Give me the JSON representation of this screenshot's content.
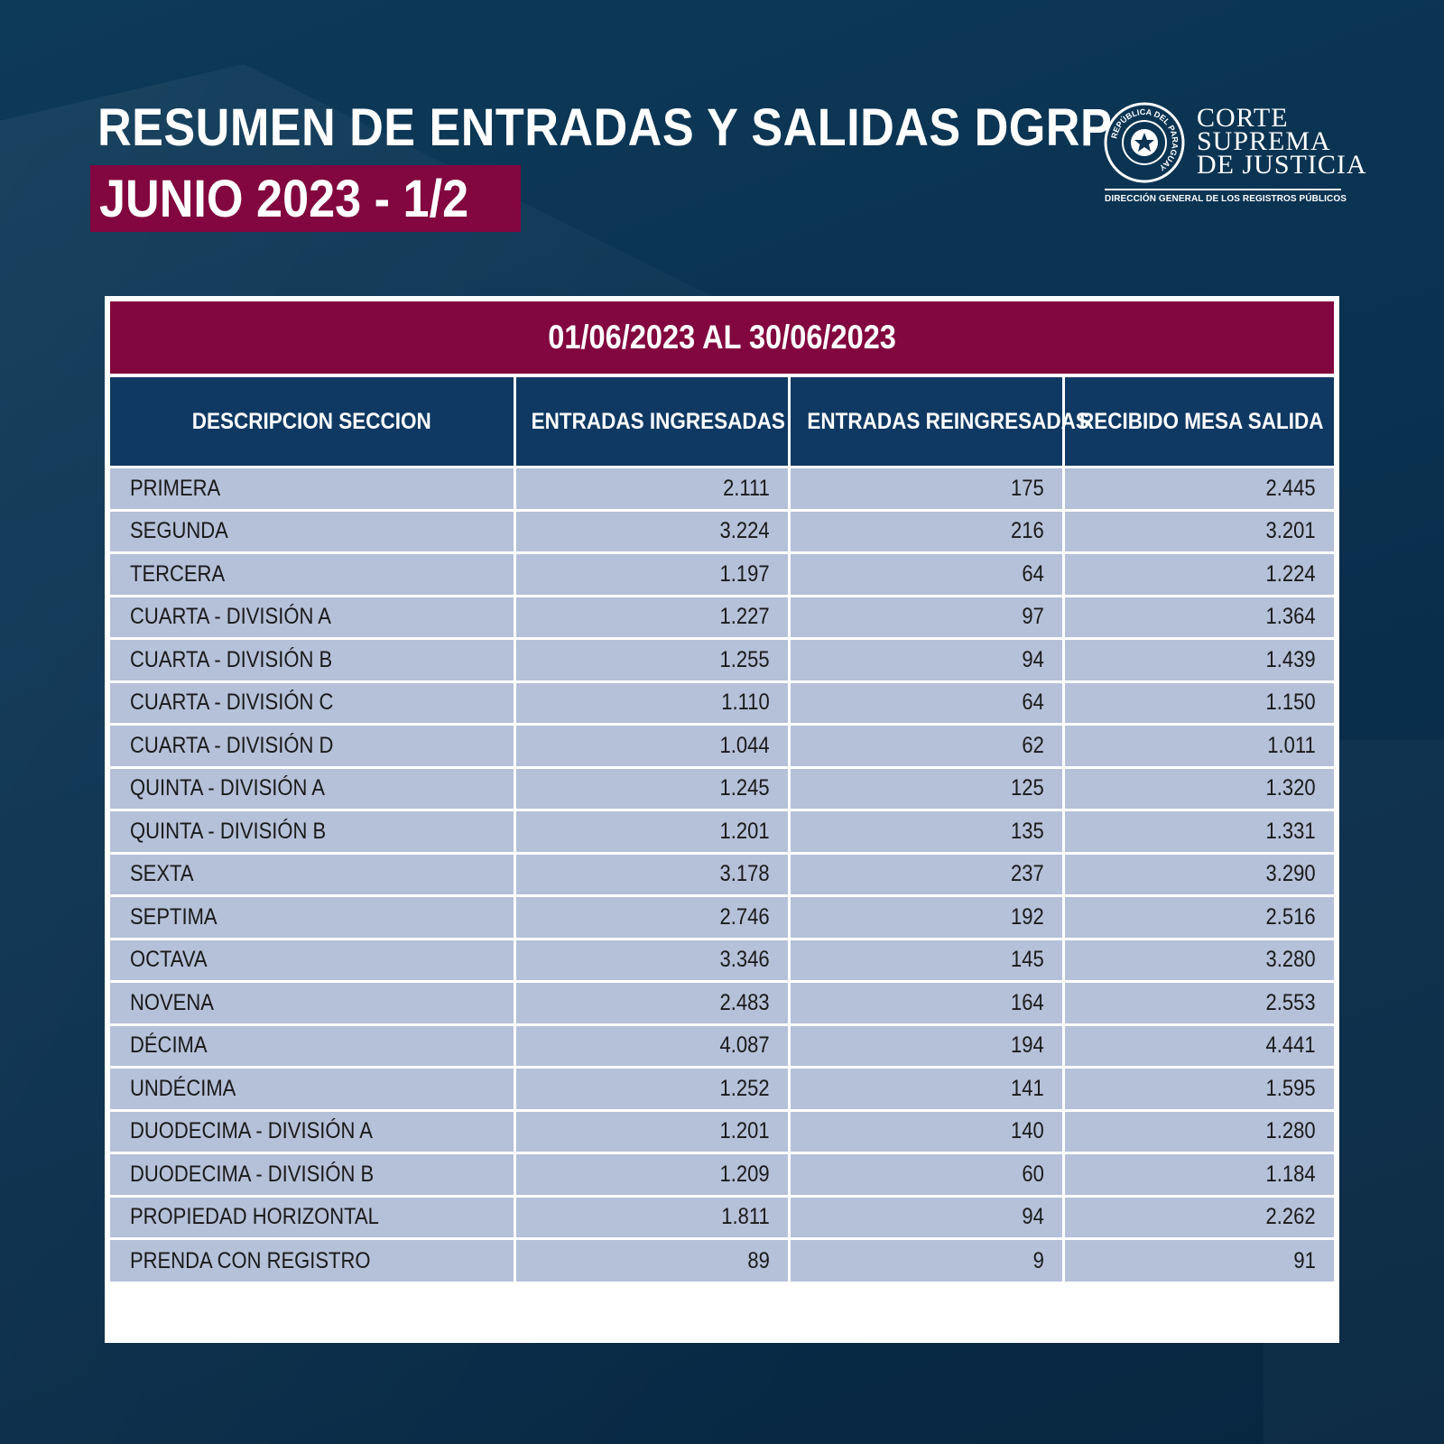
{
  "header": {
    "title": "RESUMEN DE ENTRADAS Y SALIDAS DGRP",
    "subtitle": "JUNIO 2023 - 1/2"
  },
  "logo": {
    "line1": "CORTE",
    "line2": "SUPREMA",
    "line3": "DE JUSTICIA",
    "seal_text": "REPÚBLICA DEL PARAGUAY",
    "subtitle": "DIRECCIÓN GENERAL DE LOS REGISTROS PÚBLICOS"
  },
  "table": {
    "period": "01/06/2023 AL 30/06/2023",
    "columns": [
      "DESCRIPCION SECCION",
      "ENTRADAS INGRESADAS",
      "ENTRADAS REINGRESADAS",
      "RECIBIDO MESA SALIDA"
    ],
    "rows": [
      [
        "PRIMERA",
        "2.111",
        "175",
        "2.445"
      ],
      [
        "SEGUNDA",
        "3.224",
        "216",
        "3.201"
      ],
      [
        "TERCERA",
        "1.197",
        "64",
        "1.224"
      ],
      [
        "CUARTA - DIVISIÓN A",
        "1.227",
        "97",
        "1.364"
      ],
      [
        "CUARTA - DIVISIÓN B",
        "1.255",
        "94",
        "1.439"
      ],
      [
        "CUARTA - DIVISIÓN C",
        "1.110",
        "64",
        "1.150"
      ],
      [
        "CUARTA - DIVISIÓN D",
        "1.044",
        "62",
        "1.011"
      ],
      [
        "QUINTA - DIVISIÓN A",
        "1.245",
        "125",
        "1.320"
      ],
      [
        "QUINTA - DIVISIÓN B",
        "1.201",
        "135",
        "1.331"
      ],
      [
        "SEXTA",
        "3.178",
        "237",
        "3.290"
      ],
      [
        "SEPTIMA",
        "2.746",
        "192",
        "2.516"
      ],
      [
        "OCTAVA",
        "3.346",
        "145",
        "3.280"
      ],
      [
        "NOVENA",
        "2.483",
        "164",
        "2.553"
      ],
      [
        "DÉCIMA",
        "4.087",
        "194",
        "4.441"
      ],
      [
        "UNDÉCIMA",
        "1.252",
        "141",
        "1.595"
      ],
      [
        "DUODECIMA - DIVISIÓN A",
        "1.201",
        "140",
        "1.280"
      ],
      [
        "DUODECIMA - DIVISIÓN B",
        "1.209",
        "60",
        "1.184"
      ],
      [
        "PROPIEDAD HORIZONTAL",
        "1.811",
        "94",
        "2.262"
      ],
      [
        "PRENDA CON REGISTRO",
        "89",
        "9",
        "91"
      ]
    ]
  },
  "colors": {
    "background": "#0b3352",
    "accent": "#82063f",
    "header_blue": "#0f3963",
    "row_fill": "#b5c0d9"
  }
}
